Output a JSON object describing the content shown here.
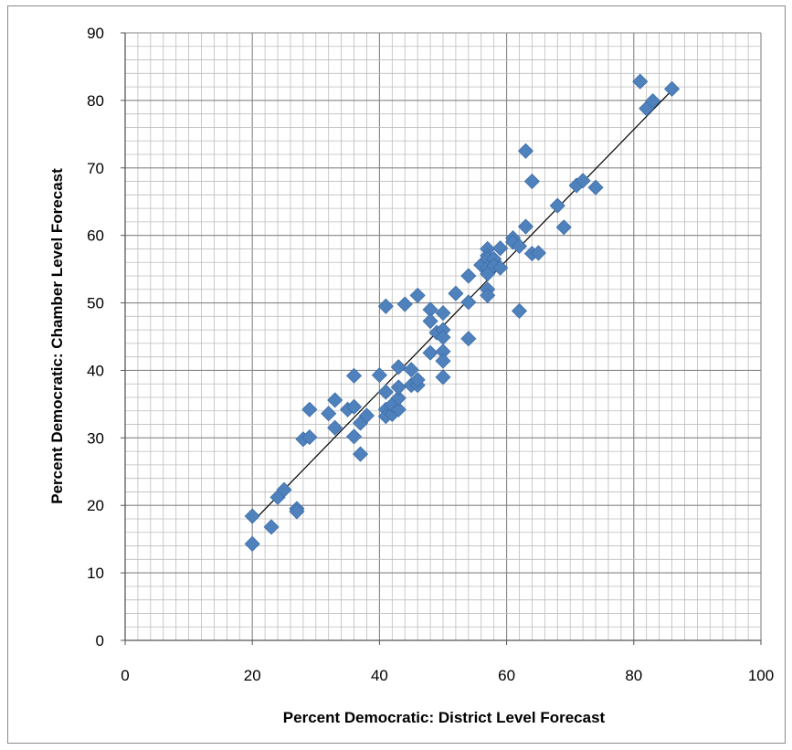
{
  "chart_data": {
    "type": "scatter",
    "title": "",
    "xlabel": "Percent Democratic: District Level Forecast",
    "ylabel": "Percent Democratic: Chamber Level Forecast",
    "xlim": [
      0,
      100
    ],
    "ylim": [
      0,
      90
    ],
    "xticks": [
      0,
      20,
      40,
      60,
      80,
      100
    ],
    "yticks": [
      0,
      10,
      20,
      30,
      40,
      50,
      60,
      70,
      80,
      90
    ],
    "xtick_labels": [
      "0",
      "20",
      "40",
      "60",
      "80",
      "100"
    ],
    "ytick_labels": [
      "0",
      "10",
      "20",
      "30",
      "40",
      "50",
      "60",
      "70",
      "80",
      "90"
    ],
    "grid": true,
    "legend": "none",
    "marker": "diamond",
    "marker_color": "#4f81bd",
    "trendline": {
      "type": "linear",
      "x": [
        20,
        86
      ],
      "y": [
        17.5,
        81.5
      ],
      "color": "#000000"
    },
    "points": [
      [
        20,
        18.4
      ],
      [
        20,
        14.3
      ],
      [
        23,
        16.8
      ],
      [
        24,
        21.2
      ],
      [
        25,
        22.3
      ],
      [
        27,
        19.5
      ],
      [
        27,
        19.1
      ],
      [
        28,
        29.8
      ],
      [
        29,
        30.1
      ],
      [
        29,
        34.2
      ],
      [
        32,
        33.6
      ],
      [
        33,
        35.6
      ],
      [
        33,
        31.5
      ],
      [
        35,
        34.2
      ],
      [
        36,
        34.6
      ],
      [
        36,
        30.2
      ],
      [
        36,
        39.2
      ],
      [
        37,
        27.6
      ],
      [
        37,
        32.2
      ],
      [
        38,
        33.3
      ],
      [
        40,
        39.3
      ],
      [
        41,
        49.5
      ],
      [
        41,
        36.8
      ],
      [
        41,
        34.2
      ],
      [
        41,
        33.2
      ],
      [
        42,
        33.5
      ],
      [
        42,
        34.9
      ],
      [
        43,
        34.2
      ],
      [
        43,
        35.9
      ],
      [
        43,
        37.5
      ],
      [
        43,
        40.5
      ],
      [
        44,
        49.8
      ],
      [
        45,
        37.8
      ],
      [
        45,
        40.1
      ],
      [
        46,
        51.1
      ],
      [
        46,
        37.8
      ],
      [
        46,
        38.6
      ],
      [
        48,
        49.0
      ],
      [
        48,
        47.3
      ],
      [
        48,
        42.6
      ],
      [
        49,
        45.6
      ],
      [
        50,
        48.5
      ],
      [
        50,
        46.0
      ],
      [
        50,
        44.9
      ],
      [
        50,
        42.8
      ],
      [
        50,
        41.4
      ],
      [
        50,
        39.0
      ],
      [
        52,
        51.4
      ],
      [
        54,
        54.0
      ],
      [
        54,
        50.1
      ],
      [
        54,
        44.7
      ],
      [
        56,
        55.6
      ],
      [
        57,
        58.0
      ],
      [
        57,
        57.0
      ],
      [
        57,
        56.5
      ],
      [
        57,
        55.2
      ],
      [
        57,
        54.3
      ],
      [
        57,
        52.0
      ],
      [
        57,
        51.1
      ],
      [
        58,
        56.5
      ],
      [
        58,
        55.5
      ],
      [
        59,
        58.1
      ],
      [
        59,
        55.2
      ],
      [
        61,
        59.6
      ],
      [
        61,
        59.0
      ],
      [
        62,
        58.4
      ],
      [
        62,
        48.8
      ],
      [
        63,
        72.5
      ],
      [
        63,
        61.3
      ],
      [
        64,
        68.0
      ],
      [
        64,
        57.3
      ],
      [
        65,
        57.4
      ],
      [
        68,
        64.4
      ],
      [
        69,
        61.2
      ],
      [
        71,
        67.4
      ],
      [
        72,
        68.1
      ],
      [
        74,
        67.1
      ],
      [
        81,
        82.8
      ],
      [
        82,
        78.8
      ],
      [
        83,
        79.9
      ],
      [
        86,
        81.7
      ]
    ]
  }
}
